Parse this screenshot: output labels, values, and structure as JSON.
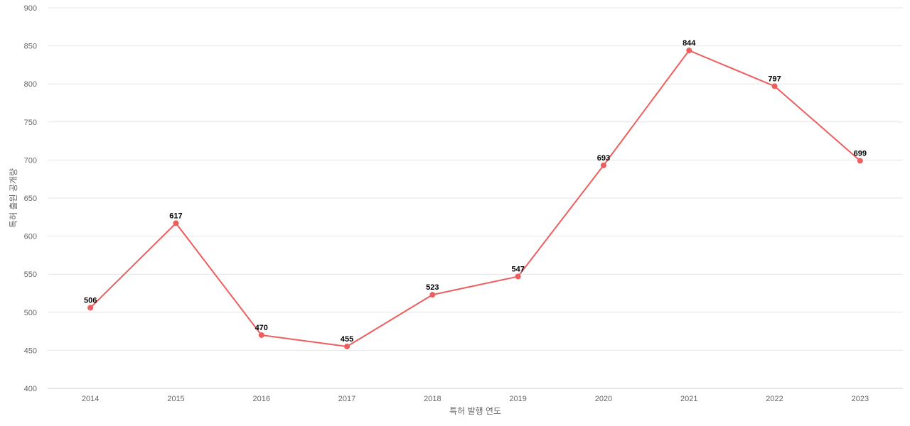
{
  "chart_data": {
    "type": "line",
    "title": "",
    "xlabel": "특허 발행 연도",
    "ylabel": "특허 출원 공개량",
    "x": [
      "2014",
      "2015",
      "2016",
      "2017",
      "2018",
      "2019",
      "2020",
      "2021",
      "2022",
      "2023"
    ],
    "series": [
      {
        "values": [
          506,
          617,
          470,
          455,
          523,
          547,
          693,
          844,
          797,
          699
        ],
        "color": "#ed5e5e"
      }
    ],
    "ylim": [
      400,
      900
    ],
    "yticks": [
      400,
      450,
      500,
      550,
      600,
      650,
      700,
      750,
      800,
      850,
      900
    ],
    "grid": true,
    "legend": "none",
    "data_labels": true
  }
}
